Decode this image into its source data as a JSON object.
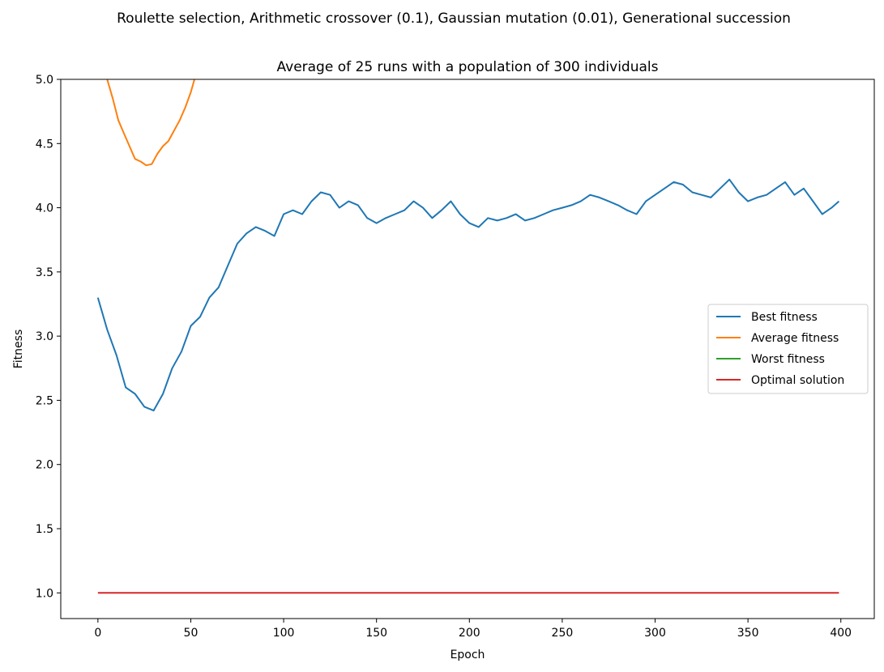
{
  "chart_data": {
    "type": "line",
    "suptitle": "Roulette selection, Arithmetic crossover (0.1), Gaussian mutation (0.01), Generational succession",
    "title": "Average of 25 runs with a population of 300 individuals",
    "xlabel": "Epoch",
    "ylabel": "Fitness",
    "xlim": [
      -20,
      418
    ],
    "ylim": [
      0.8,
      5.0
    ],
    "x_ticks": [
      0,
      50,
      100,
      150,
      200,
      250,
      300,
      350,
      400
    ],
    "y_ticks": [
      1.0,
      1.5,
      2.0,
      2.5,
      3.0,
      3.5,
      4.0,
      4.5,
      5.0
    ],
    "x_tick_labels": [
      "0",
      "50",
      "100",
      "150",
      "200",
      "250",
      "300",
      "350",
      "400"
    ],
    "y_tick_labels": [
      "1.0",
      "1.5",
      "2.0",
      "2.5",
      "3.0",
      "3.5",
      "4.0",
      "4.5",
      "5.0"
    ],
    "grid": false,
    "legend_position": "center-right",
    "series": [
      {
        "name": "Best fitness",
        "color": "#1f77b4",
        "x": [
          0,
          5,
          10,
          15,
          20,
          25,
          30,
          35,
          40,
          45,
          50,
          55,
          60,
          65,
          70,
          75,
          80,
          85,
          90,
          95,
          100,
          105,
          110,
          115,
          120,
          125,
          130,
          135,
          140,
          145,
          150,
          155,
          160,
          165,
          170,
          175,
          180,
          185,
          190,
          195,
          200,
          205,
          210,
          215,
          220,
          225,
          230,
          235,
          240,
          245,
          250,
          255,
          260,
          265,
          270,
          275,
          280,
          285,
          290,
          295,
          300,
          305,
          310,
          315,
          320,
          325,
          330,
          335,
          340,
          345,
          350,
          355,
          360,
          365,
          370,
          375,
          380,
          385,
          390,
          395,
          399
        ],
        "values": [
          3.3,
          3.05,
          2.85,
          2.6,
          2.55,
          2.45,
          2.42,
          2.55,
          2.75,
          2.88,
          3.08,
          3.15,
          3.3,
          3.38,
          3.55,
          3.72,
          3.8,
          3.85,
          3.82,
          3.78,
          3.95,
          3.98,
          3.95,
          4.05,
          4.12,
          4.1,
          4.0,
          4.05,
          4.02,
          3.92,
          3.88,
          3.92,
          3.95,
          3.98,
          4.05,
          4.0,
          3.92,
          3.98,
          4.05,
          3.95,
          3.88,
          3.85,
          3.92,
          3.9,
          3.92,
          3.95,
          3.9,
          3.92,
          3.95,
          3.98,
          4.0,
          4.02,
          4.05,
          4.1,
          4.08,
          4.05,
          4.02,
          3.98,
          3.95,
          4.05,
          4.1,
          4.15,
          4.2,
          4.18,
          4.12,
          4.1,
          4.08,
          4.15,
          4.22,
          4.12,
          4.05,
          4.08,
          4.1,
          4.15,
          4.2,
          4.1,
          4.15,
          4.05,
          3.95,
          4.0,
          4.05
        ]
      },
      {
        "name": "Average fitness",
        "color": "#ff7f0e",
        "x": [
          5,
          8,
          11,
          14,
          17,
          20,
          23,
          26,
          29,
          32,
          35,
          38,
          41,
          44,
          47,
          50,
          52
        ],
        "values": [
          5.0,
          4.85,
          4.68,
          4.58,
          4.48,
          4.38,
          4.36,
          4.33,
          4.34,
          4.42,
          4.48,
          4.52,
          4.6,
          4.68,
          4.78,
          4.9,
          5.0
        ]
      },
      {
        "name": "Worst fitness",
        "color": "#2ca02c",
        "x": [],
        "values": []
      },
      {
        "name": "Optimal solution",
        "color": "#d62728",
        "x": [
          0,
          399
        ],
        "values": [
          1.0,
          1.0
        ]
      }
    ]
  }
}
